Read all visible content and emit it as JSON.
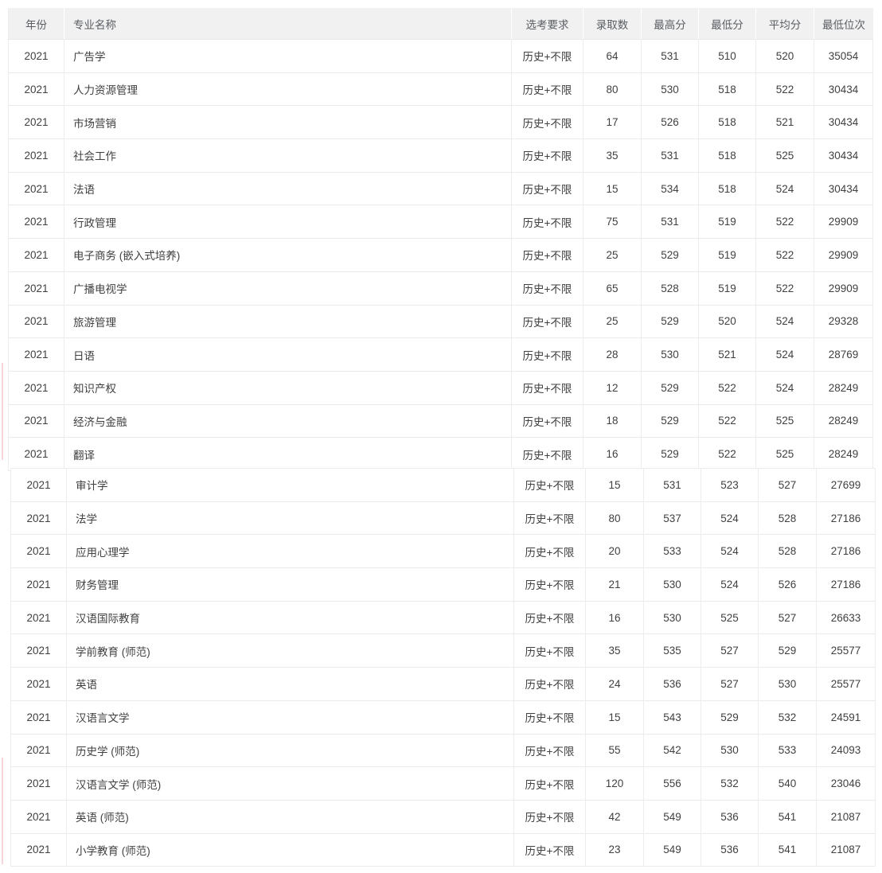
{
  "colors": {
    "header_background": "#f1f1f1",
    "header_text": "#5a5e63",
    "body_text": "#404040",
    "row_border": "#ebebeb",
    "stitch_accent": "#f6d6db"
  },
  "table": {
    "columns": [
      {
        "key": "year",
        "label": "年份"
      },
      {
        "key": "major",
        "label": "专业名称"
      },
      {
        "key": "exam_req",
        "label": "选考要求"
      },
      {
        "key": "admitted",
        "label": "录取数"
      },
      {
        "key": "max_score",
        "label": "最高分"
      },
      {
        "key": "min_score",
        "label": "最低分"
      },
      {
        "key": "avg_score",
        "label": "平均分"
      },
      {
        "key": "min_rank",
        "label": "最低位次"
      }
    ],
    "sections": [
      {
        "rows": [
          [
            "2021",
            "广告学",
            "历史+不限",
            "64",
            "531",
            "510",
            "520",
            "35054"
          ],
          [
            "2021",
            "人力资源管理",
            "历史+不限",
            "80",
            "530",
            "518",
            "522",
            "30434"
          ],
          [
            "2021",
            "市场营销",
            "历史+不限",
            "17",
            "526",
            "518",
            "521",
            "30434"
          ],
          [
            "2021",
            "社会工作",
            "历史+不限",
            "35",
            "531",
            "518",
            "525",
            "30434"
          ],
          [
            "2021",
            "法语",
            "历史+不限",
            "15",
            "534",
            "518",
            "524",
            "30434"
          ],
          [
            "2021",
            "行政管理",
            "历史+不限",
            "75",
            "531",
            "519",
            "522",
            "29909"
          ],
          [
            "2021",
            "电子商务 (嵌入式培养)",
            "历史+不限",
            "25",
            "529",
            "519",
            "522",
            "29909"
          ],
          [
            "2021",
            "广播电视学",
            "历史+不限",
            "65",
            "528",
            "519",
            "522",
            "29909"
          ],
          [
            "2021",
            "旅游管理",
            "历史+不限",
            "25",
            "529",
            "520",
            "524",
            "29328"
          ],
          [
            "2021",
            "日语",
            "历史+不限",
            "28",
            "530",
            "521",
            "524",
            "28769"
          ],
          [
            "2021",
            "知识产权",
            "历史+不限",
            "12",
            "529",
            "522",
            "524",
            "28249"
          ],
          [
            "2021",
            "经济与金融",
            "历史+不限",
            "18",
            "529",
            "522",
            "525",
            "28249"
          ],
          [
            "2021",
            "翻译",
            "历史+不限",
            "16",
            "529",
            "522",
            "525",
            "28249"
          ]
        ]
      },
      {
        "rows": [
          [
            "2021",
            "审计学",
            "历史+不限",
            "15",
            "531",
            "523",
            "527",
            "27699"
          ],
          [
            "2021",
            "法学",
            "历史+不限",
            "80",
            "537",
            "524",
            "528",
            "27186"
          ],
          [
            "2021",
            "应用心理学",
            "历史+不限",
            "20",
            "533",
            "524",
            "528",
            "27186"
          ],
          [
            "2021",
            "财务管理",
            "历史+不限",
            "21",
            "530",
            "524",
            "526",
            "27186"
          ],
          [
            "2021",
            "汉语国际教育",
            "历史+不限",
            "16",
            "530",
            "525",
            "527",
            "26633"
          ],
          [
            "2021",
            "学前教育 (师范)",
            "历史+不限",
            "35",
            "535",
            "527",
            "529",
            "25577"
          ],
          [
            "2021",
            "英语",
            "历史+不限",
            "24",
            "536",
            "527",
            "530",
            "25577"
          ],
          [
            "2021",
            "汉语言文学",
            "历史+不限",
            "15",
            "543",
            "529",
            "532",
            "24591"
          ],
          [
            "2021",
            "历史学 (师范)",
            "历史+不限",
            "55",
            "542",
            "530",
            "533",
            "24093"
          ],
          [
            "2021",
            "汉语言文学 (师范)",
            "历史+不限",
            "120",
            "556",
            "532",
            "540",
            "23046"
          ],
          [
            "2021",
            "英语 (师范)",
            "历史+不限",
            "42",
            "549",
            "536",
            "541",
            "21087"
          ],
          [
            "2021",
            "小学教育 (师范)",
            "历史+不限",
            "23",
            "549",
            "536",
            "541",
            "21087"
          ]
        ]
      }
    ]
  }
}
